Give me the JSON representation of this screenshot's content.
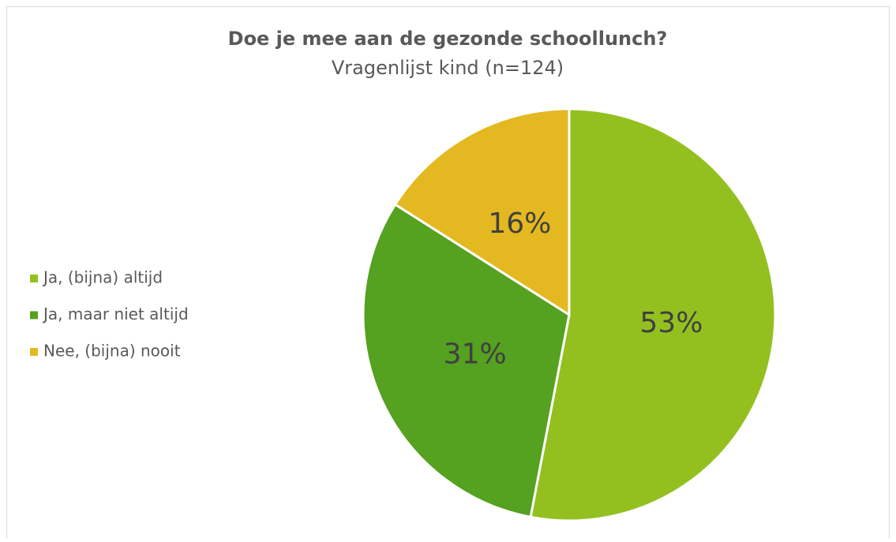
{
  "chart_data": {
    "type": "pie",
    "title": "Doe je mee aan de gezonde schoollunch?",
    "subtitle": "Vragenlijst kind (n=124)",
    "categories": [
      "Ja, (bijna) altijd",
      "Ja, maar niet altijd",
      "Nee, (bijna) nooit"
    ],
    "values": [
      53,
      31,
      16
    ],
    "value_labels": [
      "53%",
      "31%",
      "16%"
    ],
    "colors": [
      "#93c01f",
      "#55a120",
      "#e4b820"
    ],
    "legend": "left"
  }
}
